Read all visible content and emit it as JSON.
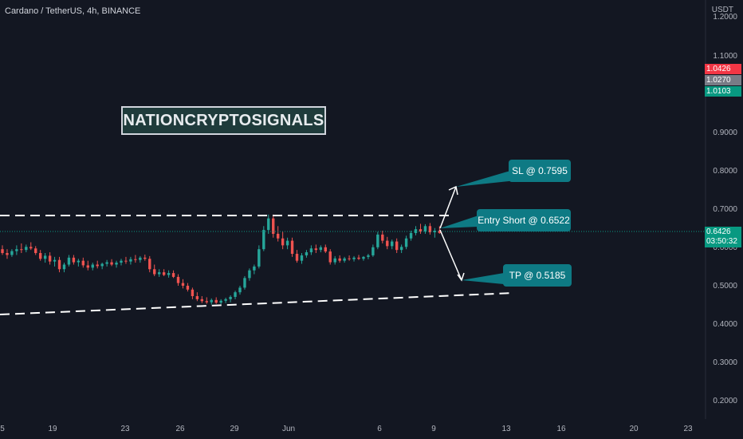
{
  "header": {
    "symbol": "Cardano / TetherUS, 4h, BINANCE"
  },
  "y_axis": {
    "unit": "USDT",
    "ticks": [
      "1.2000",
      "1.1000",
      "0.9000",
      "0.8000",
      "0.7000",
      "0.6000",
      "0.5000",
      "0.4000",
      "0.3000",
      "0.2000"
    ]
  },
  "price_tags": [
    {
      "label": "1.0426",
      "color": "#f23645"
    },
    {
      "label": "1.0270",
      "color": "#787b86"
    },
    {
      "label": "1.0103",
      "color": "#089981"
    },
    {
      "label": "0.6426",
      "sub": "03:50:32",
      "color": "#089981"
    }
  ],
  "x_axis": {
    "ticks": [
      "5",
      "19",
      "23",
      "26",
      "29",
      "Jun",
      "6",
      "9",
      "13",
      "16",
      "20",
      "23"
    ]
  },
  "watermark": "NATIONCRYPTOSIGNALS",
  "callouts": {
    "sl": "SL @ 0.7595",
    "entry": "Entry Short @ 0.6522",
    "tp": "TP @ 0.5185"
  },
  "colors": {
    "up": "#26a69a",
    "down": "#ef5350",
    "background": "#131722",
    "callout": "#0e7a84"
  },
  "chart_data": {
    "type": "candlestick",
    "ylim": [
      0.2,
      1.2
    ],
    "series": [
      {
        "values": [
          [
            0.6,
            0.61,
            0.585,
            0.59
          ],
          [
            0.59,
            0.6,
            0.575,
            0.585
          ],
          [
            0.585,
            0.6,
            0.58,
            0.595
          ],
          [
            0.595,
            0.61,
            0.585,
            0.6
          ],
          [
            0.6,
            0.615,
            0.59,
            0.598
          ],
          [
            0.598,
            0.612,
            0.592,
            0.606
          ],
          [
            0.606,
            0.618,
            0.598,
            0.602
          ],
          [
            0.602,
            0.608,
            0.585,
            0.59
          ],
          [
            0.59,
            0.598,
            0.57,
            0.575
          ],
          [
            0.575,
            0.59,
            0.565,
            0.583
          ],
          [
            0.583,
            0.592,
            0.56,
            0.568
          ],
          [
            0.568,
            0.58,
            0.555,
            0.572
          ],
          [
            0.572,
            0.58,
            0.54,
            0.548
          ],
          [
            0.548,
            0.565,
            0.54,
            0.56
          ],
          [
            0.56,
            0.585,
            0.555,
            0.578
          ],
          [
            0.578,
            0.585,
            0.56,
            0.566
          ],
          [
            0.566,
            0.575,
            0.555,
            0.57
          ],
          [
            0.57,
            0.578,
            0.552,
            0.558
          ],
          [
            0.558,
            0.57,
            0.545,
            0.552
          ],
          [
            0.552,
            0.565,
            0.545,
            0.56
          ],
          [
            0.56,
            0.57,
            0.55,
            0.556
          ],
          [
            0.556,
            0.565,
            0.548,
            0.562
          ],
          [
            0.562,
            0.572,
            0.555,
            0.566
          ],
          [
            0.566,
            0.574,
            0.556,
            0.56
          ],
          [
            0.56,
            0.57,
            0.552,
            0.565
          ],
          [
            0.565,
            0.575,
            0.558,
            0.57
          ],
          [
            0.57,
            0.58,
            0.562,
            0.568
          ],
          [
            0.568,
            0.58,
            0.56,
            0.574
          ],
          [
            0.574,
            0.585,
            0.565,
            0.572
          ],
          [
            0.572,
            0.582,
            0.565,
            0.578
          ],
          [
            0.578,
            0.586,
            0.57,
            0.575
          ],
          [
            0.575,
            0.582,
            0.54,
            0.548
          ],
          [
            0.548,
            0.56,
            0.53,
            0.535
          ],
          [
            0.535,
            0.548,
            0.528,
            0.54
          ],
          [
            0.54,
            0.548,
            0.53,
            0.533
          ],
          [
            0.533,
            0.545,
            0.526,
            0.538
          ],
          [
            0.538,
            0.545,
            0.525,
            0.528
          ],
          [
            0.528,
            0.535,
            0.505,
            0.512
          ],
          [
            0.512,
            0.522,
            0.498,
            0.505
          ],
          [
            0.505,
            0.512,
            0.49,
            0.495
          ],
          [
            0.495,
            0.5,
            0.47,
            0.478
          ],
          [
            0.478,
            0.488,
            0.465,
            0.47
          ],
          [
            0.47,
            0.478,
            0.46,
            0.465
          ],
          [
            0.465,
            0.475,
            0.458,
            0.462
          ],
          [
            0.462,
            0.472,
            0.456,
            0.468
          ],
          [
            0.468,
            0.475,
            0.458,
            0.461
          ],
          [
            0.461,
            0.47,
            0.457,
            0.466
          ],
          [
            0.466,
            0.474,
            0.46,
            0.47
          ],
          [
            0.47,
            0.48,
            0.462,
            0.476
          ],
          [
            0.476,
            0.492,
            0.47,
            0.488
          ],
          [
            0.488,
            0.505,
            0.482,
            0.5
          ],
          [
            0.5,
            0.53,
            0.495,
            0.525
          ],
          [
            0.525,
            0.55,
            0.518,
            0.545
          ],
          [
            0.545,
            0.56,
            0.535,
            0.555
          ],
          [
            0.555,
            0.61,
            0.55,
            0.6
          ],
          [
            0.6,
            0.66,
            0.595,
            0.65
          ],
          [
            0.65,
            0.69,
            0.64,
            0.68
          ],
          [
            0.68,
            0.69,
            0.63,
            0.64
          ],
          [
            0.64,
            0.66,
            0.62,
            0.628
          ],
          [
            0.628,
            0.645,
            0.6,
            0.61
          ],
          [
            0.61,
            0.63,
            0.6,
            0.622
          ],
          [
            0.622,
            0.63,
            0.58,
            0.588
          ],
          [
            0.588,
            0.598,
            0.565,
            0.57
          ],
          [
            0.57,
            0.59,
            0.562,
            0.584
          ],
          [
            0.584,
            0.598,
            0.578,
            0.592
          ],
          [
            0.592,
            0.61,
            0.585,
            0.602
          ],
          [
            0.602,
            0.612,
            0.59,
            0.598
          ],
          [
            0.598,
            0.61,
            0.592,
            0.605
          ],
          [
            0.605,
            0.612,
            0.59,
            0.594
          ],
          [
            0.594,
            0.6,
            0.56,
            0.566
          ],
          [
            0.566,
            0.582,
            0.56,
            0.576
          ],
          [
            0.576,
            0.584,
            0.565,
            0.57
          ],
          [
            0.57,
            0.58,
            0.565,
            0.576
          ],
          [
            0.576,
            0.584,
            0.57,
            0.574
          ],
          [
            0.574,
            0.582,
            0.568,
            0.578
          ],
          [
            0.578,
            0.585,
            0.572,
            0.575
          ],
          [
            0.575,
            0.582,
            0.57,
            0.58
          ],
          [
            0.58,
            0.588,
            0.574,
            0.584
          ],
          [
            0.584,
            0.612,
            0.58,
            0.605
          ],
          [
            0.605,
            0.645,
            0.6,
            0.638
          ],
          [
            0.638,
            0.648,
            0.615,
            0.622
          ],
          [
            0.622,
            0.632,
            0.6,
            0.608
          ],
          [
            0.608,
            0.625,
            0.6,
            0.62
          ],
          [
            0.62,
            0.628,
            0.59,
            0.598
          ],
          [
            0.598,
            0.612,
            0.59,
            0.606
          ],
          [
            0.606,
            0.635,
            0.6,
            0.628
          ],
          [
            0.628,
            0.648,
            0.622,
            0.642
          ],
          [
            0.642,
            0.66,
            0.636,
            0.652
          ],
          [
            0.652,
            0.666,
            0.64,
            0.646
          ],
          [
            0.646,
            0.665,
            0.64,
            0.66
          ],
          [
            0.66,
            0.668,
            0.638,
            0.644
          ],
          [
            0.644,
            0.655,
            0.63,
            0.648
          ],
          [
            0.648,
            0.66,
            0.64,
            0.642
          ]
        ]
      }
    ],
    "annotations": [
      {
        "type": "resistance",
        "from": [
          0,
          0.688
        ],
        "to": [
          93,
          0.688
        ]
      },
      {
        "type": "support",
        "from": [
          0,
          0.426
        ],
        "to": [
          97,
          0.478
        ]
      }
    ]
  }
}
